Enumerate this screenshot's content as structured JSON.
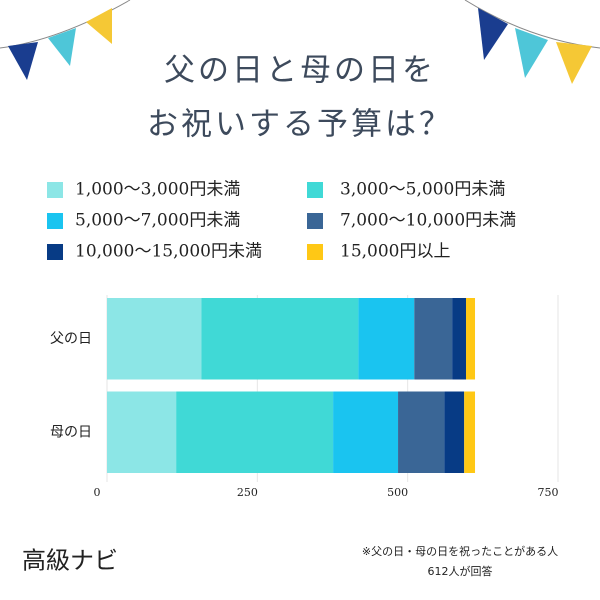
{
  "chart_data": {
    "type": "stacked-bar-horizontal",
    "title_lines": [
      "父の日と母の日を",
      "お祝いする予算は？"
    ],
    "categories": [
      "父の日",
      "母の日"
    ],
    "series": [
      {
        "name": "1,000〜3,000円未満",
        "color": "#8ce6e6",
        "values": [
          157,
          115
        ]
      },
      {
        "name": "3,000〜5,000円未満",
        "color": "#40d9d6",
        "values": [
          261,
          261
        ]
      },
      {
        "name": "5,000〜7,000円未満",
        "color": "#1ac4f0",
        "values": [
          93,
          108
        ]
      },
      {
        "name": "7,000〜10,000円未満",
        "color": "#3a6696",
        "values": [
          63,
          77
        ]
      },
      {
        "name": "10,000〜15,000円未満",
        "color": "#073b85",
        "values": [
          23,
          33
        ]
      },
      {
        "name": "15,000円以上",
        "color": "#ffc815",
        "values": [
          15,
          18
        ]
      }
    ],
    "xlim": [
      0,
      750
    ],
    "xticks": [
      0,
      250,
      500,
      750
    ],
    "grid": true,
    "brand": "高級ナビ",
    "note_lines": [
      "※父の日・母の日を祝ったことがある人",
      "612人が回答"
    ]
  }
}
